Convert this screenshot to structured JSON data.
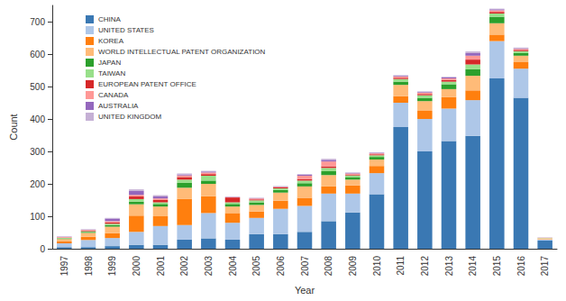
{
  "chart_data": {
    "type": "bar",
    "stacked": true,
    "grid": false,
    "legend": "top-left",
    "x_label": "Year",
    "y_label": "Count",
    "categories": [
      "1997",
      "1998",
      "1999",
      "2000",
      "2001",
      "2002",
      "2003",
      "2004",
      "2005",
      "2006",
      "2007",
      "2008",
      "2009",
      "2010",
      "2011",
      "2012",
      "2013",
      "2014",
      "2015",
      "2016",
      "2017"
    ],
    "ylim": [
      0,
      750
    ],
    "yticks": [
      0,
      100,
      200,
      300,
      400,
      500,
      600,
      700
    ],
    "series": [
      {
        "name": "CHINA",
        "color": "#3a78b3",
        "values": [
          5,
          5,
          8,
          12,
          12,
          28,
          32,
          28,
          45,
          45,
          52,
          85,
          112,
          168,
          375,
          300,
          332,
          348,
          525,
          465,
          25
        ]
      },
      {
        "name": "UNITED STATES",
        "color": "#aec7e8",
        "values": [
          12,
          22,
          25,
          40,
          58,
          45,
          78,
          52,
          50,
          78,
          80,
          85,
          58,
          65,
          75,
          100,
          100,
          110,
          115,
          90,
          3
        ]
      },
      {
        "name": "KOREA",
        "color": "#ff7f0e",
        "values": [
          5,
          10,
          15,
          50,
          30,
          80,
          52,
          30,
          20,
          25,
          25,
          22,
          25,
          22,
          20,
          25,
          35,
          30,
          20,
          20,
          1
        ]
      },
      {
        "name": "WORLD INTELLECTUAL PATENT ORGANIZATION",
        "color": "#ffbb78",
        "values": [
          8,
          12,
          20,
          35,
          30,
          35,
          38,
          20,
          20,
          25,
          35,
          35,
          18,
          20,
          35,
          30,
          25,
          45,
          35,
          20,
          3
        ]
      },
      {
        "name": "JAPAN",
        "color": "#2ca02c",
        "values": [
          2,
          3,
          5,
          8,
          8,
          15,
          10,
          8,
          8,
          8,
          10,
          12,
          8,
          8,
          10,
          10,
          15,
          20,
          20,
          8,
          0
        ]
      },
      {
        "name": "TAIWAN",
        "color": "#98df8a",
        "values": [
          1,
          2,
          4,
          8,
          5,
          10,
          15,
          5,
          6,
          5,
          8,
          10,
          5,
          5,
          8,
          8,
          8,
          15,
          10,
          6,
          1
        ]
      },
      {
        "name": "EUROPEAN PATENT OFFICE",
        "color": "#d62728",
        "values": [
          1,
          2,
          4,
          8,
          7,
          8,
          5,
          15,
          3,
          3,
          5,
          5,
          3,
          3,
          4,
          4,
          5,
          15,
          5,
          4,
          0
        ]
      },
      {
        "name": "CANADA",
        "color": "#ff9896",
        "values": [
          2,
          2,
          4,
          5,
          5,
          5,
          5,
          1,
          3,
          2,
          10,
          15,
          3,
          3,
          4,
          4,
          5,
          12,
          5,
          3,
          1
        ]
      },
      {
        "name": "AUSTRALIA",
        "color": "#9467bd",
        "values": [
          1,
          1,
          8,
          12,
          6,
          3,
          3,
          1,
          1,
          1,
          3,
          5,
          2,
          2,
          2,
          2,
          3,
          8,
          3,
          2,
          0
        ]
      },
      {
        "name": "UNITED KINGDOM",
        "color": "#c5b0d5",
        "values": [
          1,
          1,
          2,
          5,
          4,
          3,
          2,
          0,
          1,
          1,
          2,
          3,
          1,
          1,
          2,
          2,
          2,
          5,
          2,
          2,
          1
        ]
      }
    ]
  }
}
